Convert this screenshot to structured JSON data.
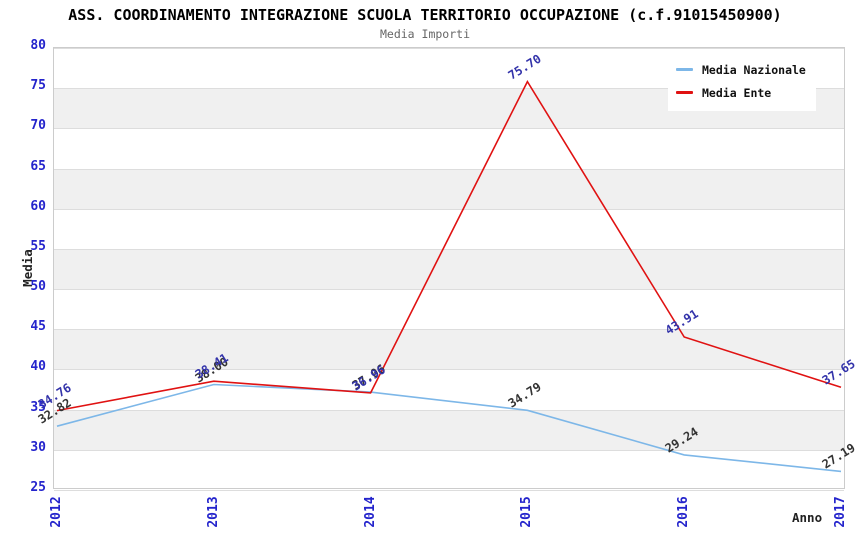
{
  "chart_data": {
    "type": "line",
    "title": "ASS. COORDINAMENTO INTEGRAZIONE SCUOLA TERRITORIO OCCUPAZIONE (c.f.91015450900)",
    "subtitle": "Media Importi",
    "xlabel": "Anno",
    "ylabel": "Media",
    "categories": [
      "2012",
      "2013",
      "2014",
      "2015",
      "2016",
      "2017"
    ],
    "series": [
      {
        "name": "Media Nazionale",
        "color": "#7db7e8",
        "label_color": "#333333",
        "values": [
          32.82,
          38.0,
          37.06,
          34.79,
          29.24,
          27.19
        ]
      },
      {
        "name": "Media Ente",
        "color": "#e01212",
        "label_color": "#3333aa",
        "values": [
          34.76,
          38.41,
          36.96,
          75.7,
          43.91,
          37.65
        ]
      }
    ],
    "ylim": [
      25,
      80
    ],
    "yticks": [
      80,
      75,
      70,
      65,
      60,
      55,
      50,
      45,
      40,
      35,
      30,
      25
    ],
    "grid": "horizontal-gridlines-with-alternating-bands",
    "legend_position": "top-right",
    "colors": {
      "tick_label": "#2424cc",
      "band": "#f0f0f0",
      "grid_line": "#dddddd",
      "plot_border": "#cccccc",
      "title": "#000000",
      "subtitle": "#666666",
      "axis_title": "#222222"
    }
  }
}
